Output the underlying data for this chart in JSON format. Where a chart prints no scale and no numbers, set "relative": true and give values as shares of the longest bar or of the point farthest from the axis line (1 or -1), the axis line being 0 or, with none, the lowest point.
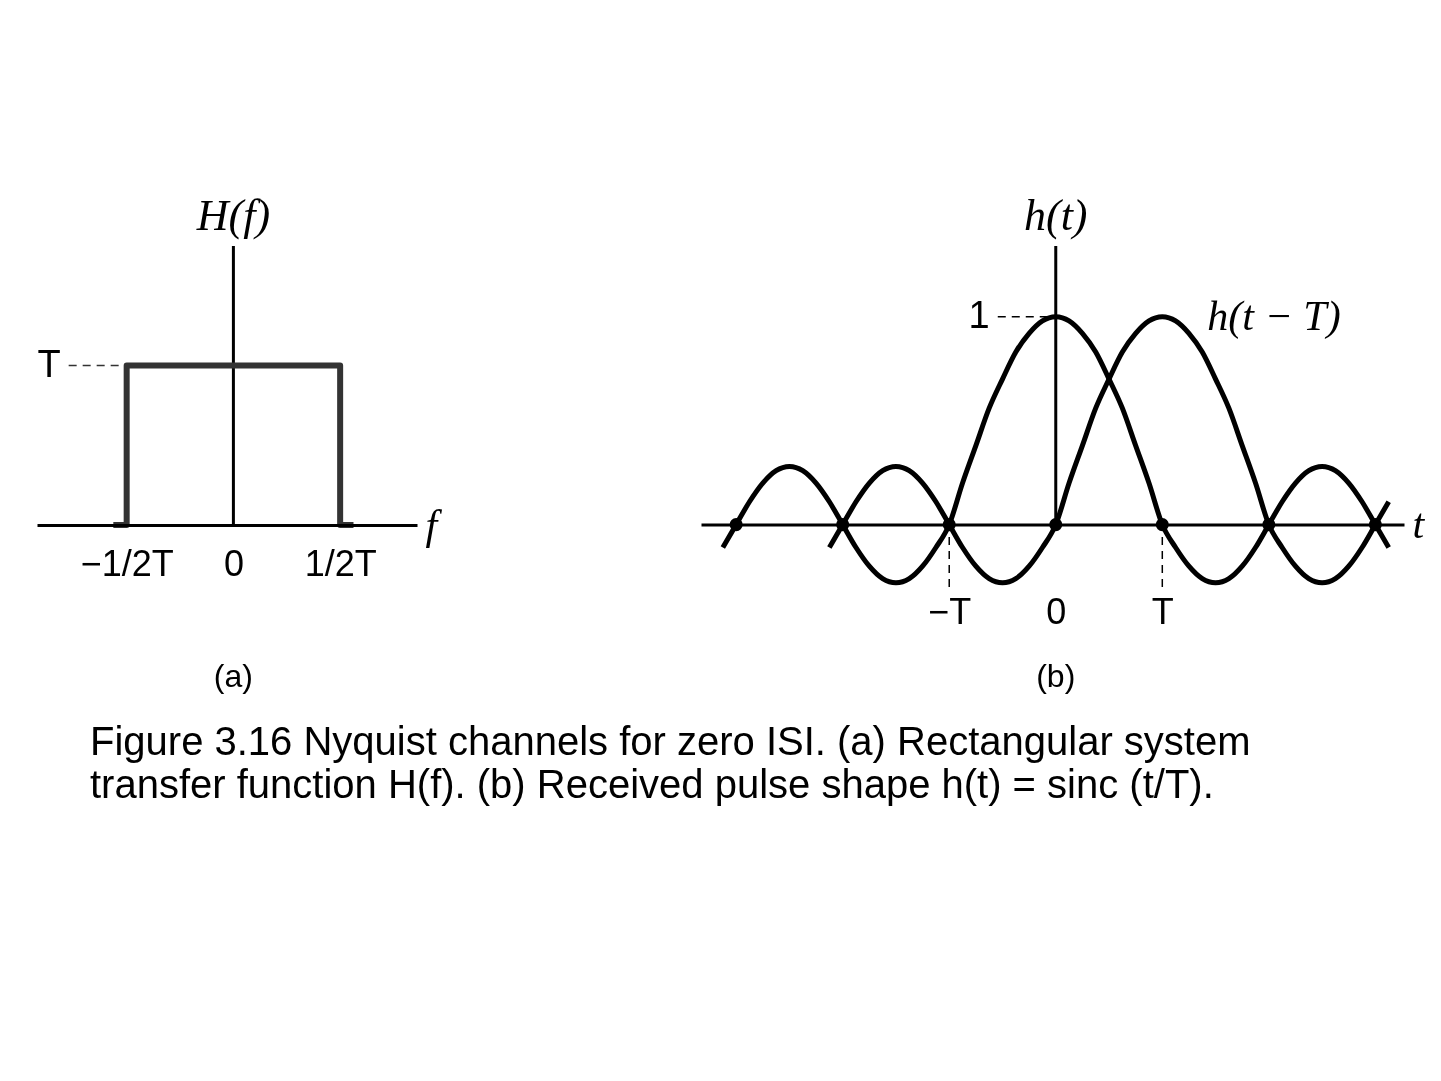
{
  "chart_data": [
    {
      "type": "step",
      "title": "(a)",
      "xlabel": "f",
      "ylabel": "H(f)",
      "relative": true,
      "categories": [
        null,
        "−1/2T",
        null,
        null,
        null,
        null,
        null,
        null,
        null,
        "0",
        null,
        null,
        null,
        null,
        null,
        null,
        null,
        "1/2T",
        null
      ],
      "series": [
        {
          "color": "#333333",
          "values": [
            0,
            1,
            1,
            1,
            1,
            1,
            1,
            1,
            1,
            1,
            1,
            1,
            1,
            1,
            1,
            1,
            1,
            0,
            0
          ]
        }
      ],
      "ref_lines": [
        {
          "axis": "y",
          "value": 1,
          "label": "T",
          "line_style": "dashed",
          "color": "#333333"
        }
      ]
    },
    {
      "type": "line",
      "title": "(b)",
      "xlabel": "t",
      "ylabel": "h(t)",
      "relative": true,
      "categories": [
        null,
        null,
        null,
        null,
        null,
        null,
        null,
        null,
        null,
        null,
        null,
        null,
        null,
        null,
        null,
        null,
        null,
        "−T",
        null,
        null,
        null,
        null,
        null,
        null,
        null,
        "0",
        null,
        null,
        null,
        null,
        null,
        null,
        null,
        "T",
        null,
        null,
        null,
        null,
        null,
        null,
        null,
        null,
        null,
        null,
        null,
        null,
        null,
        null,
        null,
        null,
        null
      ],
      "series": [
        {
          "color": "#000000",
          "values": [
            -0.11,
            0,
            0.11,
            0.2,
            0.26,
            0.28,
            0.26,
            0.2,
            0.11,
            0,
            -0.11,
            -0.2,
            -0.26,
            -0.28,
            -0.26,
            -0.2,
            -0.11,
            0,
            0.2,
            0.38,
            0.56,
            0.7,
            0.83,
            0.92,
            0.98,
            1,
            0.98,
            0.92,
            0.83,
            0.7,
            0.56,
            0.38,
            0.2,
            0,
            -0.11,
            -0.2,
            -0.26,
            -0.28,
            -0.26,
            -0.2,
            -0.11,
            0,
            0.11,
            0.2,
            0.26,
            0.28,
            0.26,
            0.2,
            0.11,
            0,
            -0.11
          ]
        },
        {
          "name": "h(t − T)",
          "color": "#000000",
          "values": [
            null,
            null,
            null,
            null,
            null,
            null,
            null,
            null,
            -0.11,
            0,
            0.11,
            0.2,
            0.26,
            0.28,
            0.26,
            0.2,
            0.11,
            0,
            -0.11,
            -0.2,
            -0.26,
            -0.28,
            -0.26,
            -0.2,
            -0.11,
            0,
            0.2,
            0.38,
            0.56,
            0.7,
            0.83,
            0.92,
            0.98,
            1,
            0.98,
            0.92,
            0.83,
            0.7,
            0.56,
            0.38,
            0.2,
            0,
            -0.11,
            -0.2,
            -0.26,
            -0.28,
            -0.26,
            -0.2,
            -0.11,
            0,
            0.11
          ]
        },
        {
          "type": "scatter",
          "marker": "circle",
          "color": "#000000",
          "values": [
            null,
            0,
            null,
            null,
            null,
            null,
            null,
            null,
            null,
            0,
            null,
            null,
            null,
            null,
            null,
            null,
            null,
            0,
            null,
            null,
            null,
            null,
            null,
            null,
            null,
            0,
            null,
            null,
            null,
            null,
            null,
            null,
            null,
            0,
            null,
            null,
            null,
            null,
            null,
            null,
            null,
            0,
            null,
            null,
            null,
            null,
            null,
            null,
            null,
            0,
            null
          ]
        }
      ],
      "ref_lines": [
        {
          "axis": "y",
          "value": 1,
          "label": "1",
          "line_style": "dashed",
          "color": "#000000"
        },
        {
          "axis": "x",
          "value": "−T",
          "line_style": "dashed",
          "color": "#000000"
        },
        {
          "axis": "x",
          "value": "T",
          "line_style": "dashed",
          "color": "#000000"
        }
      ],
      "annotations": [
        "Figure 3.16 Nyquist channels for zero ISI. (a) Rectangular system transfer function H(f). (b) Received pulse shape h(t) = sinc (t/T)."
      ]
    }
  ]
}
